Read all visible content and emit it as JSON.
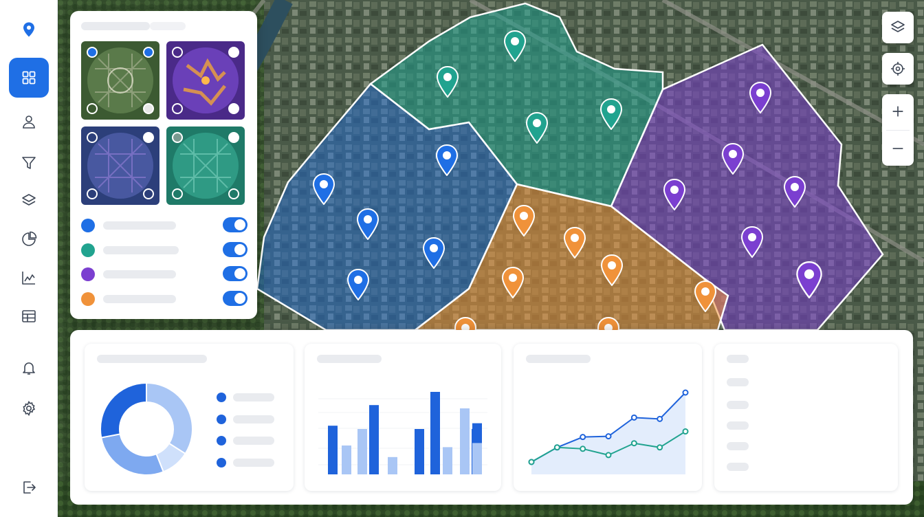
{
  "colors": {
    "accent": "#1f6fe5",
    "zone_blue": "#1f6fe5",
    "zone_teal": "#21a38f",
    "zone_purple": "#7b3fd0",
    "zone_orange": "#f0923a",
    "bar_dark": "#1f63db",
    "bar_light": "#a9c6f5"
  },
  "nav": {
    "logo_icon": "map-pin-icon",
    "items": [
      {
        "icon": "grid-icon",
        "active": true
      },
      {
        "icon": "user-icon"
      },
      {
        "icon": "filter-icon"
      },
      {
        "icon": "layers-icon"
      },
      {
        "icon": "pie-chart-icon"
      },
      {
        "icon": "line-chart-icon"
      },
      {
        "icon": "table-icon"
      },
      {
        "icon": "bell-icon"
      },
      {
        "icon": "settings-icon"
      },
      {
        "icon": "logout-icon"
      }
    ]
  },
  "map_controls": [
    "layers-icon",
    "locate-icon",
    "zoom-in-icon",
    "zoom-out-icon"
  ],
  "layer_panel": {
    "basemaps": [
      {
        "style": "satellite"
      },
      {
        "style": "heatmap"
      },
      {
        "style": "blue-overlay"
      },
      {
        "style": "teal-overlay"
      }
    ],
    "layers": [
      {
        "color": "#1f6fe5",
        "enabled": true
      },
      {
        "color": "#21a38f",
        "enabled": true
      },
      {
        "color": "#7b3fd0",
        "enabled": true
      },
      {
        "color": "#f0923a",
        "enabled": true
      }
    ]
  },
  "chart_data": [
    {
      "type": "pie",
      "values": [
        34,
        10,
        28,
        28
      ]
    },
    {
      "type": "bar",
      "categories": [
        "",
        "",
        "",
        "",
        "",
        ""
      ],
      "ylim": [
        0,
        100
      ],
      "series": [
        {
          "values": [
            59,
            84,
            55,
            100,
            55,
            62
          ]
        },
        {
          "values": [
            35,
            55,
            21,
            33,
            80,
            38
          ]
        }
      ]
    },
    {
      "type": "line",
      "x": [
        1,
        2,
        3,
        4,
        5,
        6,
        7
      ],
      "ylim": [
        0,
        100
      ],
      "series": [
        {
          "values": [
            0,
            21,
            36,
            37,
            64,
            62,
            100
          ]
        },
        {
          "values": [
            0,
            21,
            19,
            10,
            27,
            21,
            44
          ]
        }
      ]
    }
  ]
}
